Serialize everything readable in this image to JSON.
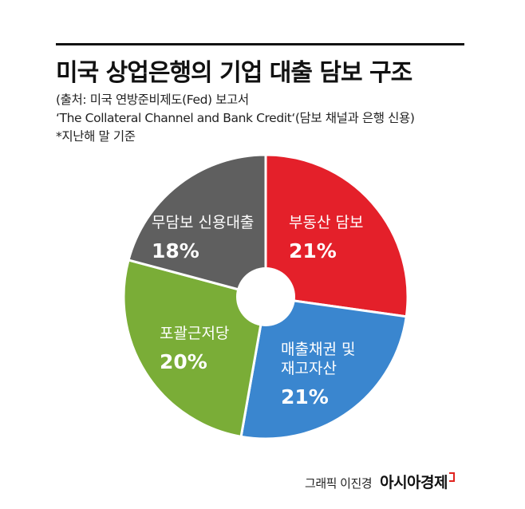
{
  "title": "미국 상업은행의 기업 대출 담보 구조",
  "source_lines": [
    "(출처: 미국 연방준비제도(Fed) 보고서",
    "‘The Collateral Channel and Bank Credit‘(담보 채널과 은행 신용)",
    "*지난해 말 기준"
  ],
  "credit": {
    "graphic": "그래픽 이진경",
    "brand": "아시아경제"
  },
  "chart_data": {
    "type": "pie",
    "donut": true,
    "unit": "%",
    "slices": [
      {
        "label_lines": [
          "부동산 담보"
        ],
        "value": 21,
        "value_label": "21%",
        "color": "#e4202a"
      },
      {
        "label_lines": [
          "매출채권 및",
          "재고자산"
        ],
        "value": 21,
        "value_label": "21%",
        "color": "#3a86cf"
      },
      {
        "label_lines": [
          "포괄근저당"
        ],
        "value": 20,
        "value_label": "20%",
        "color": "#7aad37"
      },
      {
        "label_lines": [
          "무담보 신용대출"
        ],
        "value": 18,
        "value_label": "18%",
        "color": "#5f5f5f"
      }
    ]
  }
}
